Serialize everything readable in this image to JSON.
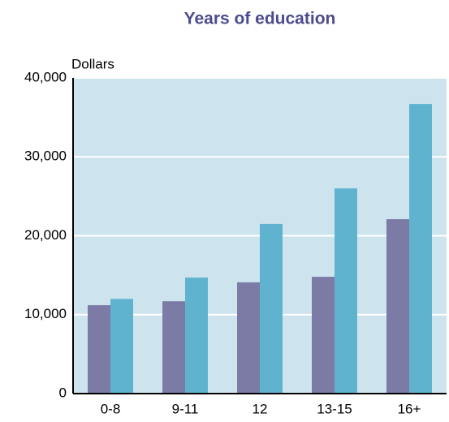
{
  "chart_data": {
    "type": "bar",
    "title": "Years of education",
    "y_label": "Dollars",
    "categories": [
      "0-8",
      "9-11",
      "12",
      "13-15",
      "16+"
    ],
    "series": [
      {
        "color": "#7b7ba6",
        "values": [
          11200,
          11700,
          14100,
          14800,
          22100
        ]
      },
      {
        "color": "#5fb3cf",
        "values": [
          12000,
          14700,
          21500,
          26000,
          36700
        ]
      }
    ],
    "ylim": [
      0,
      40000
    ],
    "yticks": [
      0,
      {
        "value": 10000,
        "label": "10,000"
      },
      {
        "value": 20000,
        "label": "20,000"
      },
      {
        "value": 30000,
        "label": "30,000"
      },
      {
        "value": 40000,
        "label": "40,000"
      }
    ],
    "grid": true,
    "plot_background": "#cde4ee"
  }
}
